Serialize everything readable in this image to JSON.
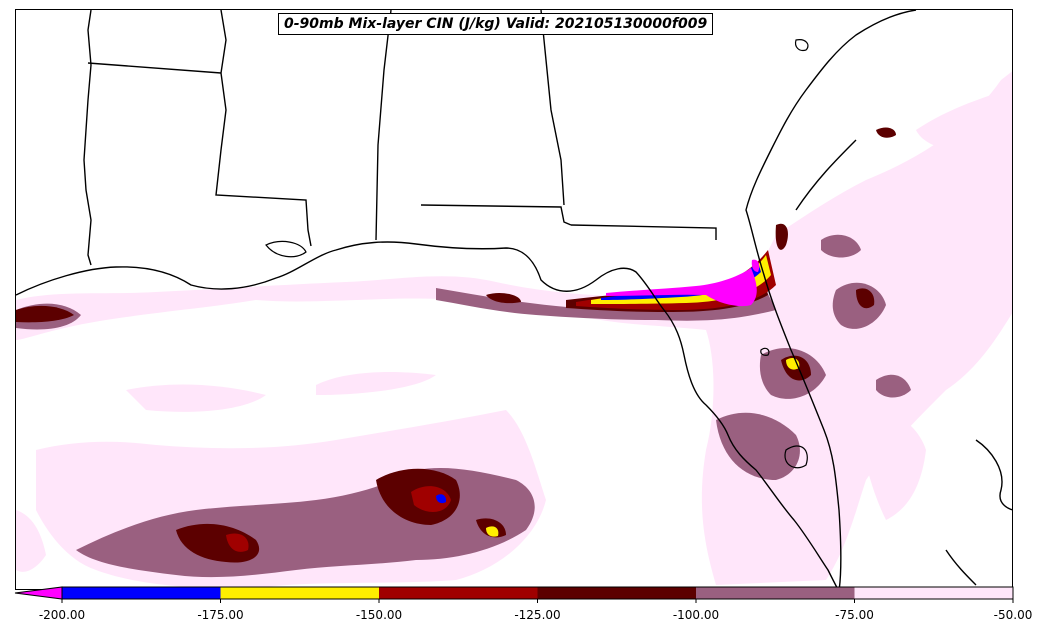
{
  "title": "0-90mb Mix-layer CIN (J/kg) Valid: 202105130000f009",
  "colorbar": {
    "extend": "min",
    "under_color": "#ff00ff",
    "levels": [
      -200,
      -175,
      -150,
      -125,
      -100,
      -75,
      -50
    ],
    "tick_labels": [
      "-200.00",
      "-175.00",
      "-150.00",
      "-125.00",
      "-100.00",
      "-75.00",
      "-50.00"
    ],
    "colors": [
      "#0000ff",
      "#ffee00",
      "#a00000",
      "#5c0000",
      "#9a6080",
      "#ffe6fa"
    ]
  }
}
